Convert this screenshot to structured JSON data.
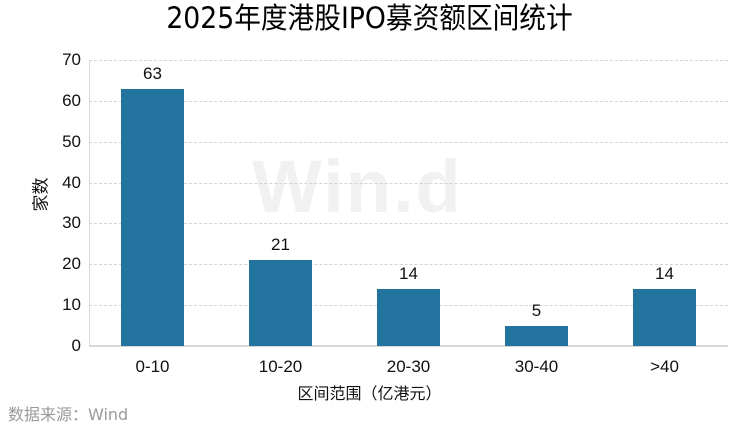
{
  "chart": {
    "title": "2025年度港股IPO募资额区间统计",
    "ylabel": "家数",
    "xlabel": "区间范围（亿港元）",
    "source": "数据来源：Wind",
    "watermark": "Win.d",
    "bar_color": "#22739e",
    "yticks": [
      "0",
      "10",
      "20",
      "30",
      "40",
      "50",
      "60",
      "70"
    ]
  },
  "chart_data": {
    "type": "bar",
    "title": "2025年度港股IPO募资额区间统计",
    "xlabel": "区间范围（亿港元）",
    "ylabel": "家数",
    "categories": [
      "0-10",
      "10-20",
      "20-30",
      "30-40",
      ">40"
    ],
    "values": [
      63,
      21,
      14,
      5,
      14
    ],
    "data_labels": [
      "63",
      "21",
      "14",
      "5",
      "14"
    ],
    "ylim": [
      0,
      70
    ],
    "yticks": [
      0,
      10,
      20,
      30,
      40,
      50,
      60,
      70
    ],
    "grid": "horizontal dashed",
    "legend": "none",
    "source": "数据来源：Wind"
  }
}
